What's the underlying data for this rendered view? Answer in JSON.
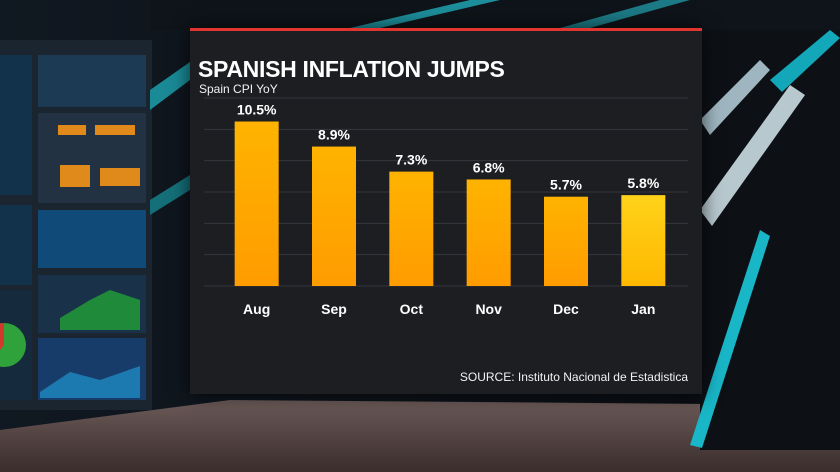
{
  "chart_data": {
    "type": "bar",
    "title": "SPANISH INFLATION JUMPS",
    "subtitle": "Spain CPI YoY",
    "source": "SOURCE: Instituto Nacional de Estadistica",
    "categories": [
      "Aug",
      "Sep",
      "Oct",
      "Nov",
      "Dec",
      "Jan"
    ],
    "values": [
      10.5,
      8.9,
      7.3,
      6.8,
      5.7,
      5.8
    ],
    "value_labels": [
      "10.5%",
      "8.9%",
      "7.3%",
      "6.8%",
      "5.7%",
      "5.8%"
    ],
    "xlabel": "",
    "ylabel": "",
    "ylim": [
      0,
      12
    ],
    "grid": true,
    "legend": "none",
    "colors": {
      "bar_top": "#ffb300",
      "bar_bottom": "#ff9c00",
      "bar_last_top": "#ffd21a",
      "bar_last_bottom": "#ffb800",
      "panel": "#1c1e22",
      "gridline": "#34373d",
      "accent_line": "#e2352f"
    }
  }
}
